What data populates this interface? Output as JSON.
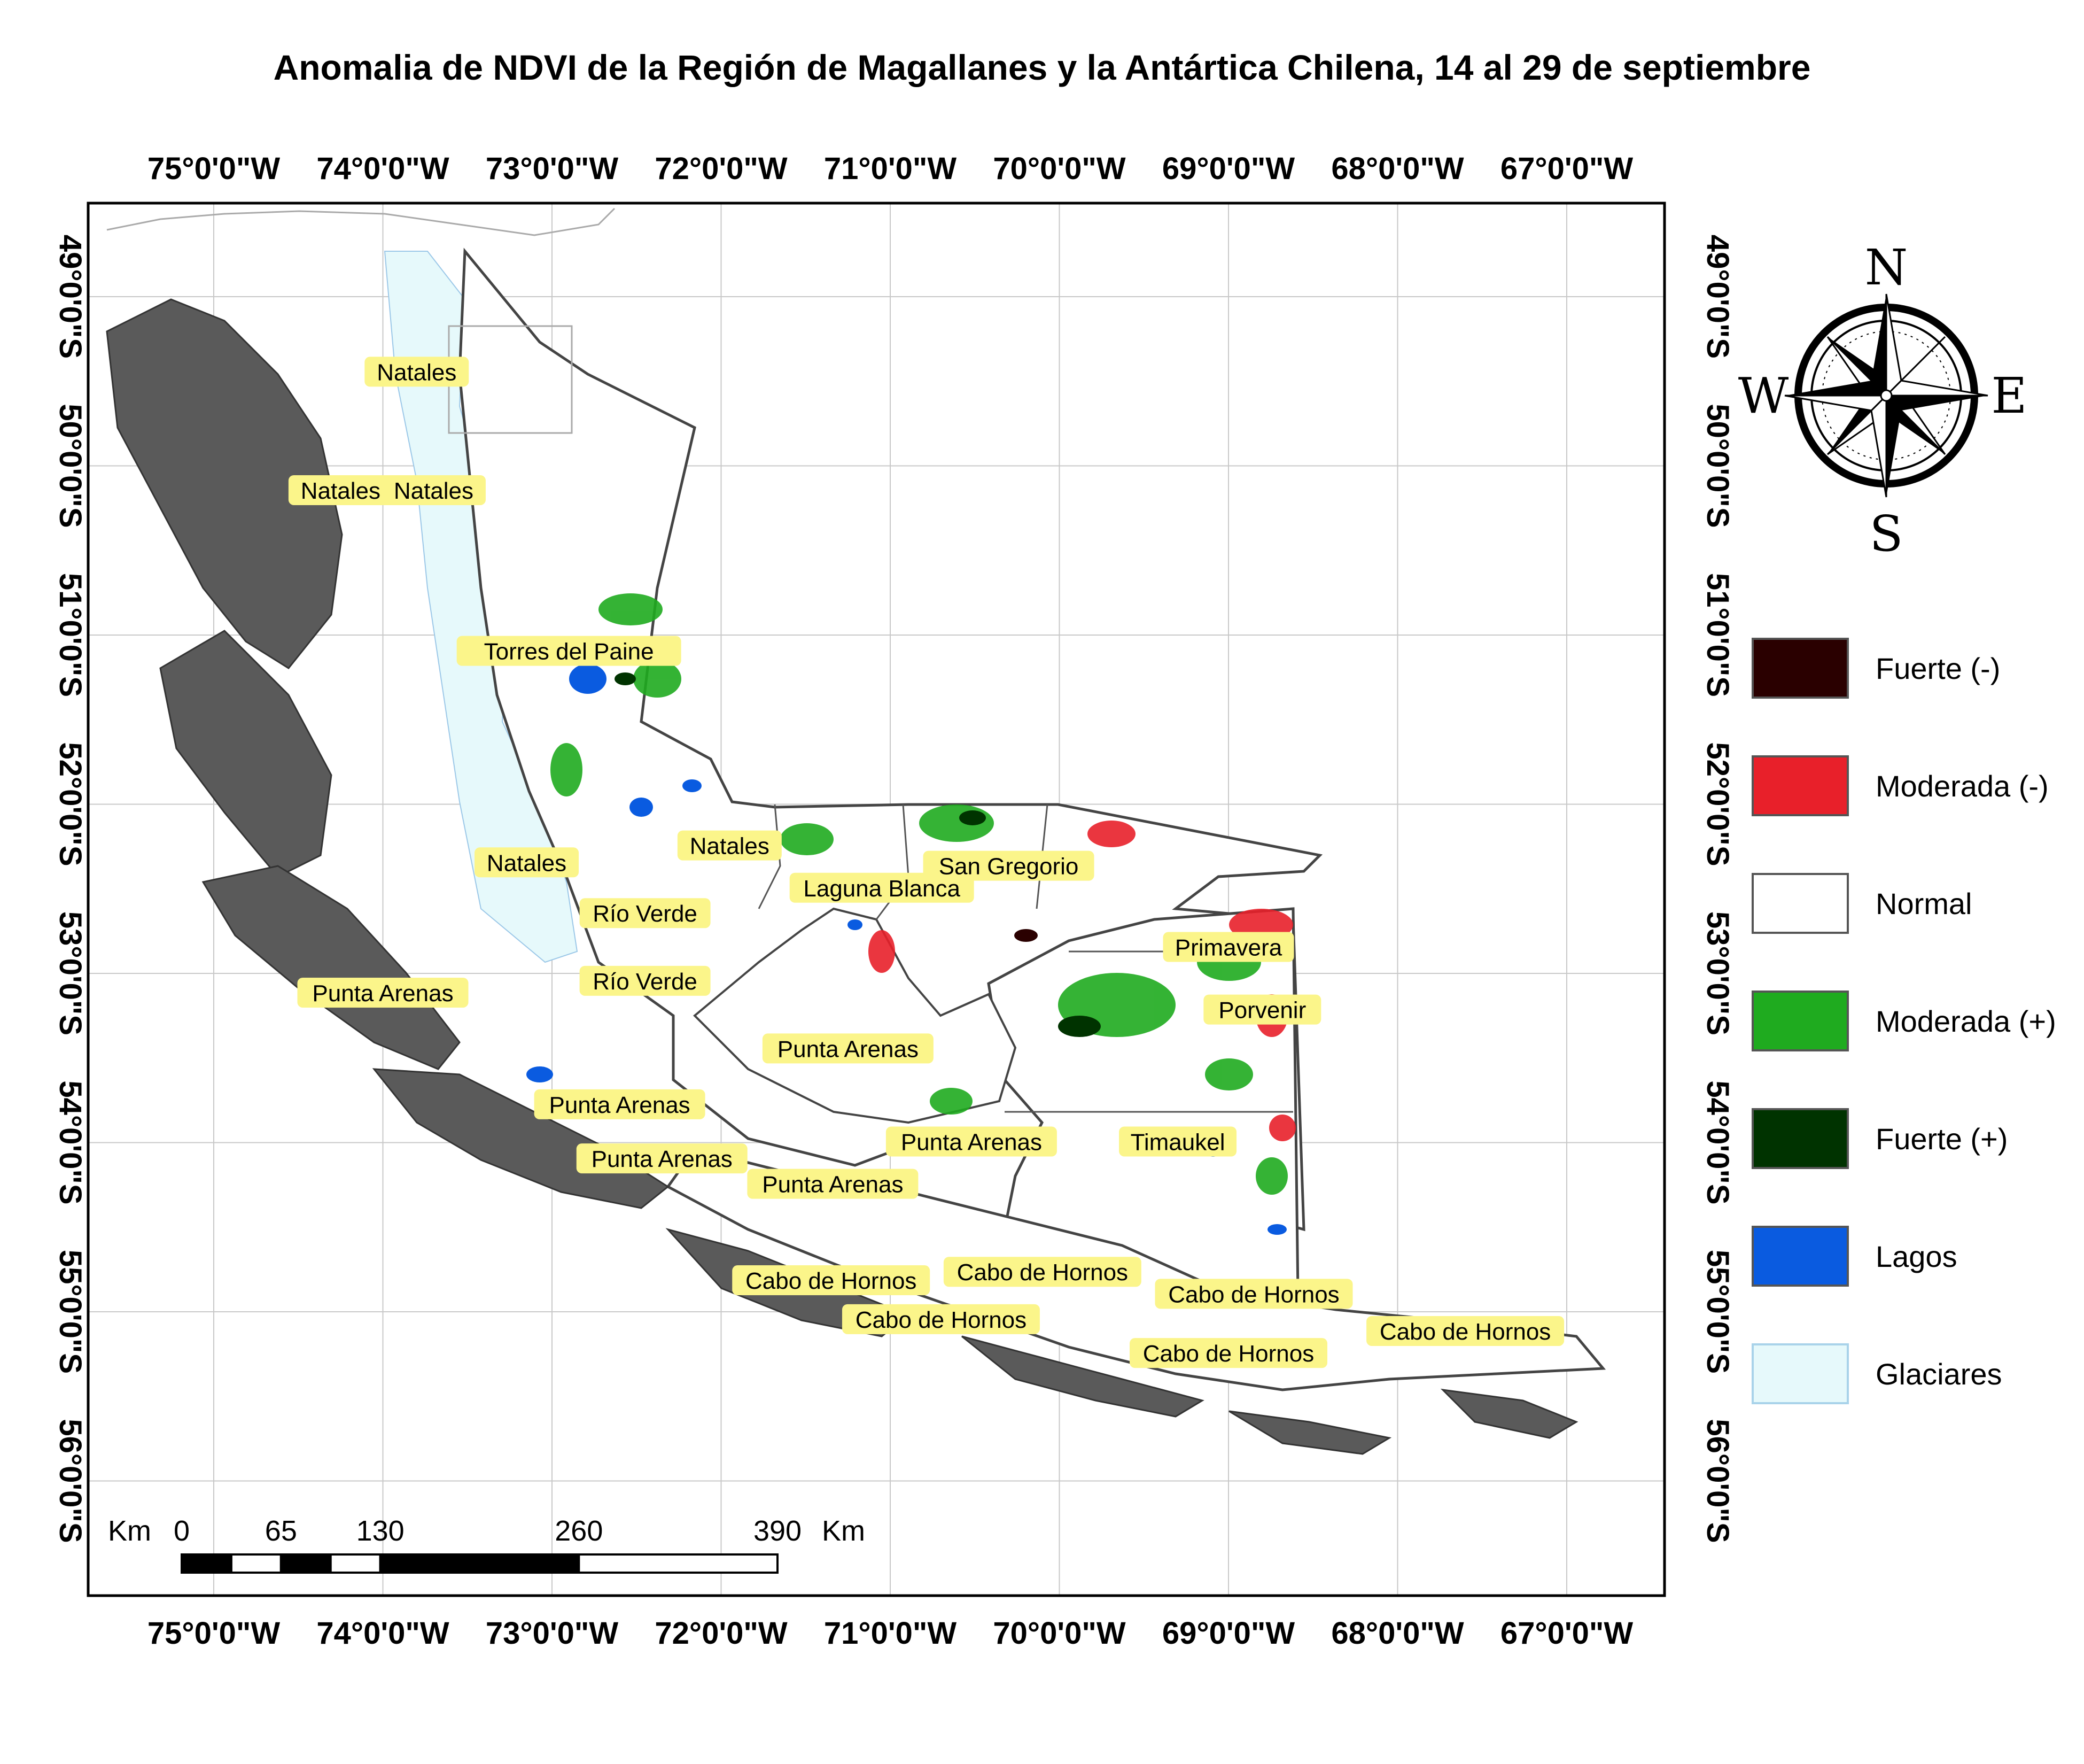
{
  "title": "Anomalia de NDVI de la Región de Magallanes y la Antártica Chilena, 14 al 29 de septiembre",
  "longitude_labels": [
    "75°0'0\"W",
    "74°0'0\"W",
    "73°0'0\"W",
    "72°0'0\"W",
    "71°0'0\"W",
    "70°0'0\"W",
    "69°0'0\"W",
    "68°0'0\"W",
    "67°0'0\"W"
  ],
  "latitude_labels": [
    "49°0'0\"S",
    "50°0'0\"S",
    "51°0'0\"S",
    "52°0'0\"S",
    "53°0'0\"S",
    "54°0'0\"S",
    "55°0'0\"S",
    "56°0'0\"S"
  ],
  "place_labels": [
    {
      "text": "Natales",
      "lon": -73.8,
      "lat": -49.45
    },
    {
      "text": "Natales",
      "lon": -74.25,
      "lat": -50.15
    },
    {
      "text": "Natales",
      "lon": -73.7,
      "lat": -50.15
    },
    {
      "text": "Torres del Paine",
      "lon": -72.9,
      "lat": -51.1
    },
    {
      "text": "Natales",
      "lon": -73.15,
      "lat": -52.35
    },
    {
      "text": "Natales",
      "lon": -71.95,
      "lat": -52.25
    },
    {
      "text": "Laguna Blanca",
      "lon": -71.05,
      "lat": -52.5
    },
    {
      "text": "San Gregorio",
      "lon": -70.3,
      "lat": -52.37
    },
    {
      "text": "Río Verde",
      "lon": -72.45,
      "lat": -52.65
    },
    {
      "text": "Primavera",
      "lon": -69.0,
      "lat": -52.85
    },
    {
      "text": "Punta Arenas",
      "lon": -74.0,
      "lat": -53.12
    },
    {
      "text": "Río Verde",
      "lon": -72.45,
      "lat": -53.05
    },
    {
      "text": "Porvenir",
      "lon": -68.8,
      "lat": -53.22
    },
    {
      "text": "Punta Arenas",
      "lon": -71.25,
      "lat": -53.45
    },
    {
      "text": "Punta Arenas",
      "lon": -72.6,
      "lat": -53.78
    },
    {
      "text": "Punta Arenas",
      "lon": -70.52,
      "lat": -54.0
    },
    {
      "text": "Timaukel",
      "lon": -69.3,
      "lat": -54.0
    },
    {
      "text": "Punta Arenas",
      "lon": -72.35,
      "lat": -54.1
    },
    {
      "text": "Punta Arenas",
      "lon": -71.34,
      "lat": -54.25
    },
    {
      "text": "Cabo de Hornos",
      "lon": -70.1,
      "lat": -54.77
    },
    {
      "text": "Cabo de Hornos",
      "lon": -71.35,
      "lat": -54.82
    },
    {
      "text": "Cabo de Hornos",
      "lon": -68.85,
      "lat": -54.9
    },
    {
      "text": "Cabo de Hornos",
      "lon": -70.7,
      "lat": -55.05
    },
    {
      "text": "Cabo de Hornos",
      "lon": -67.6,
      "lat": -55.12
    },
    {
      "text": "Cabo de Hornos",
      "lon": -69.0,
      "lat": -55.25
    }
  ],
  "legend": [
    {
      "label": "Fuerte (-)",
      "color": "#2a0000"
    },
    {
      "label": "Moderada (-)",
      "color": "#e8202a"
    },
    {
      "label": "Normal",
      "color": "#ffffff"
    },
    {
      "label": "Moderada (+)",
      "color": "#1fab1f"
    },
    {
      "label": "Fuerte (+)",
      "color": "#003300"
    },
    {
      "label": "Lagos",
      "color": "#0a5be0"
    },
    {
      "label": "Glaciares",
      "color": "#e6f9fb"
    }
  ],
  "compass": {
    "n": "N",
    "s": "S",
    "e": "E",
    "w": "W"
  },
  "scale_bar": {
    "unit_left": "Km",
    "ticks": [
      {
        "label": "0",
        "km": 0
      },
      {
        "label": "65",
        "km": 65
      },
      {
        "label": "130",
        "km": 130
      },
      {
        "label": "260",
        "km": 260
      },
      {
        "label": "390",
        "km": 390
      }
    ],
    "unit_right": "Km"
  }
}
